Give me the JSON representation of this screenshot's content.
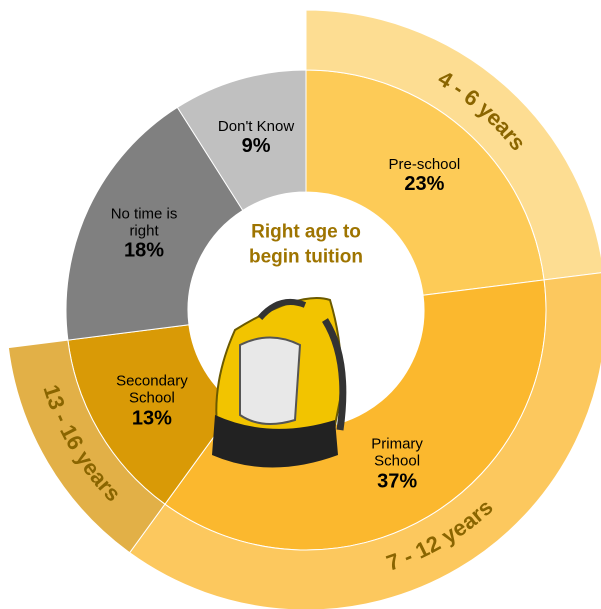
{
  "chart_data": {
    "type": "donut",
    "title": "Right age to begin tuition",
    "categories": [
      "Pre-school",
      "Primary School",
      "Secondary School",
      "No time is right",
      "Don't Know"
    ],
    "values": [
      23,
      37,
      13,
      18,
      9
    ],
    "value_labels": [
      "23%",
      "37%",
      "13%",
      "18%",
      "9%"
    ],
    "colors": [
      "#fdcb57",
      "#fbb82e",
      "#d99a06",
      "#808080",
      "#c0c0c0"
    ],
    "age_groups": [
      "4 - 6 years",
      "7 - 12 years",
      "13 - 16 years",
      null,
      null
    ],
    "age_group_colors": [
      "#fddd92",
      "#fcc85e",
      "#e2b047",
      null,
      null
    ]
  }
}
